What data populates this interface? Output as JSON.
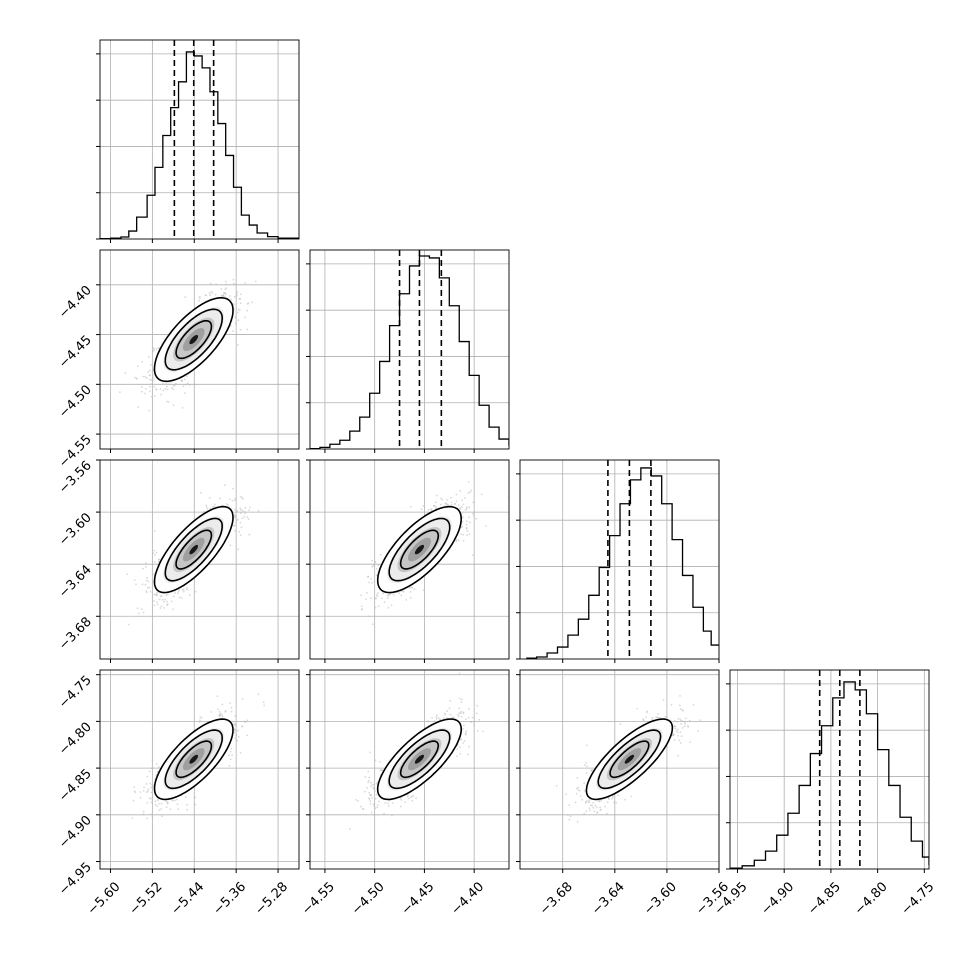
{
  "chart_data": {
    "type": "corner",
    "parameters": [
      {
        "range": [
          -5.62,
          -5.24
        ],
        "ticks": [
          -5.6,
          -5.52,
          -5.44,
          -5.36,
          -5.28
        ],
        "tick_labels": [
          "−5.60",
          "−5.52",
          "−5.44",
          "−5.36",
          "−5.28"
        ],
        "quantiles": [
          -5.478,
          -5.441,
          -5.403
        ]
      },
      {
        "range": [
          -4.565,
          -4.365
        ],
        "ticks": [
          -4.55,
          -4.5,
          -4.45,
          -4.4
        ],
        "tick_labels": [
          "−4.55",
          "−4.50",
          "−4.45",
          "−4.40"
        ],
        "quantiles": [
          -4.475,
          -4.455,
          -4.433
        ]
      },
      {
        "range": [
          -3.7128,
          -3.56
        ],
        "ticks": [
          -3.68,
          -3.64,
          -3.6,
          -3.56
        ],
        "tick_labels": [
          "−3.68",
          "−3.64",
          "−3.60",
          "−3.56"
        ],
        "quantiles": [
          -3.6453,
          -3.6288,
          -3.6123
        ]
      },
      {
        "range": [
          -4.958,
          -4.745
        ],
        "ticks": [
          -4.95,
          -4.9,
          -4.85,
          -4.8,
          -4.75
        ],
        "tick_labels": [
          "−4.95",
          "−4.90",
          "−4.85",
          "−4.80",
          "−4.75"
        ],
        "quantiles": [
          -4.862,
          -4.8405,
          -4.819
        ]
      }
    ],
    "hist_bins": {
      "0": [
        [
          -5.62,
          0.01
        ],
        [
          -5.6,
          0.02
        ],
        [
          -5.58,
          0.05
        ],
        [
          -5.565,
          0.2
        ],
        [
          -5.55,
          0.55
        ],
        [
          -5.53,
          1.1
        ],
        [
          -5.515,
          1.8
        ],
        [
          -5.5,
          2.6
        ],
        [
          -5.485,
          3.3
        ],
        [
          -5.47,
          3.95
        ],
        [
          -5.455,
          4.7
        ],
        [
          -5.44,
          4.6
        ],
        [
          -5.425,
          4.3
        ],
        [
          -5.41,
          3.7
        ],
        [
          -5.395,
          2.9
        ],
        [
          -5.38,
          2.1
        ],
        [
          -5.365,
          1.3
        ],
        [
          -5.35,
          0.6
        ],
        [
          -5.335,
          0.35
        ],
        [
          -5.32,
          0.15
        ],
        [
          -5.3,
          0.06
        ],
        [
          -5.28,
          0.02
        ]
      ],
      "1": [
        [
          -4.565,
          0.01
        ],
        [
          -4.555,
          0.04
        ],
        [
          -4.545,
          0.12
        ],
        [
          -4.535,
          0.22
        ],
        [
          -4.525,
          0.45
        ],
        [
          -4.515,
          0.8
        ],
        [
          -4.505,
          1.4
        ],
        [
          -4.495,
          2.2
        ],
        [
          -4.485,
          3.1
        ],
        [
          -4.475,
          3.9
        ],
        [
          -4.465,
          4.6
        ],
        [
          -4.455,
          4.85
        ],
        [
          -4.445,
          4.8
        ],
        [
          -4.435,
          4.3
        ],
        [
          -4.425,
          3.6
        ],
        [
          -4.415,
          2.7
        ],
        [
          -4.405,
          1.85
        ],
        [
          -4.395,
          1.1
        ],
        [
          -4.385,
          0.55
        ],
        [
          -4.375,
          0.25
        ],
        [
          -4.365,
          0.08
        ]
      ],
      "2": [
        [
          -3.708,
          0.02
        ],
        [
          -3.7,
          0.05
        ],
        [
          -3.692,
          0.15
        ],
        [
          -3.684,
          0.3
        ],
        [
          -3.676,
          0.6
        ],
        [
          -3.668,
          1.0
        ],
        [
          -3.66,
          1.6
        ],
        [
          -3.652,
          2.3
        ],
        [
          -3.644,
          3.1
        ],
        [
          -3.636,
          3.9
        ],
        [
          -3.628,
          4.5
        ],
        [
          -3.62,
          4.8
        ],
        [
          -3.612,
          4.6
        ],
        [
          -3.604,
          3.9
        ],
        [
          -3.596,
          3.0
        ],
        [
          -3.588,
          2.1
        ],
        [
          -3.58,
          1.3
        ],
        [
          -3.572,
          0.7
        ],
        [
          -3.566,
          0.35
        ]
      ],
      "3": [
        [
          -4.958,
          0.02
        ],
        [
          -4.945,
          0.08
        ],
        [
          -4.932,
          0.22
        ],
        [
          -4.92,
          0.45
        ],
        [
          -4.908,
          0.85
        ],
        [
          -4.896,
          1.4
        ],
        [
          -4.884,
          2.1
        ],
        [
          -4.872,
          2.9
        ],
        [
          -4.86,
          3.6
        ],
        [
          -4.848,
          4.3
        ],
        [
          -4.836,
          4.7
        ],
        [
          -4.824,
          4.5
        ],
        [
          -4.812,
          3.9
        ],
        [
          -4.8,
          3.0
        ],
        [
          -4.788,
          2.1
        ],
        [
          -4.776,
          1.3
        ],
        [
          -4.764,
          0.7
        ],
        [
          -4.752,
          0.3
        ],
        [
          -4.745,
          0.1
        ]
      ]
    },
    "correlations": {
      "1-0": 0.7,
      "2-0": 0.75,
      "2-1": 0.72,
      "3-0": 0.73,
      "3-1": 0.75,
      "3-2": 0.78
    },
    "contour_levels": [
      0.5,
      1.0,
      1.5
    ],
    "grid": true,
    "colors": {
      "contour": "#000000",
      "scatter": "#bfbfbf",
      "density": "#808080",
      "grid": "#b0b0b0"
    }
  }
}
